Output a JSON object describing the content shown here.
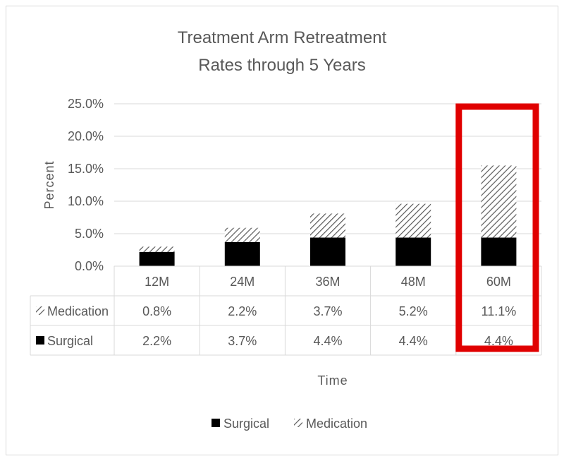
{
  "chart_data": {
    "type": "bar",
    "stacked": true,
    "title": [
      "Treatment Arm Retreatment",
      "Rates through 5 Years"
    ],
    "xlabel": "Time",
    "ylabel": "Percent",
    "ylim": [
      0,
      25
    ],
    "yticks": [
      "0.0%",
      "5.0%",
      "10.0%",
      "15.0%",
      "20.0%",
      "25.0%"
    ],
    "grid": true,
    "legend_position": "bottom",
    "categories": [
      "12M",
      "24M",
      "36M",
      "48M",
      "60M"
    ],
    "series": [
      {
        "name": "Surgical",
        "pattern": "solid",
        "color": "#000000",
        "values": [
          2.2,
          3.7,
          4.4,
          4.4,
          4.4
        ],
        "labels": [
          "2.2%",
          "3.7%",
          "4.4%",
          "4.4%",
          "4.4%"
        ]
      },
      {
        "name": "Medication",
        "pattern": "diagonal-hatch",
        "color": "#595959",
        "values": [
          0.8,
          2.2,
          3.7,
          5.2,
          11.1
        ],
        "labels": [
          "0.8%",
          "2.2%",
          "3.7%",
          "5.2%",
          "11.1%"
        ]
      }
    ],
    "data_table_rows": [
      "Medication",
      "Surgical"
    ],
    "highlight": {
      "category": "60M",
      "color": "#e00000"
    }
  }
}
